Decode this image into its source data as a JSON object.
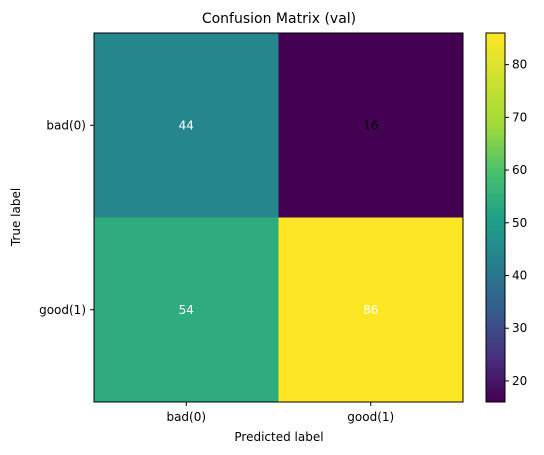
{
  "chart_data": {
    "type": "heatmap",
    "title": "Confusion Matrix (val)",
    "xlabel": "Predicted label",
    "ylabel": "True label",
    "x_categories": [
      "bad(0)",
      "good(1)"
    ],
    "y_categories": [
      "bad(0)",
      "good(1)"
    ],
    "values": [
      [
        44,
        16
      ],
      [
        54,
        86
      ]
    ],
    "colormap": "viridis",
    "colorbar": {
      "min": 16,
      "max": 86,
      "ticks": [
        20,
        30,
        40,
        50,
        60,
        70,
        80
      ]
    },
    "annotation_colors": {
      "light": "#ffffff",
      "dark": "#000000"
    }
  }
}
